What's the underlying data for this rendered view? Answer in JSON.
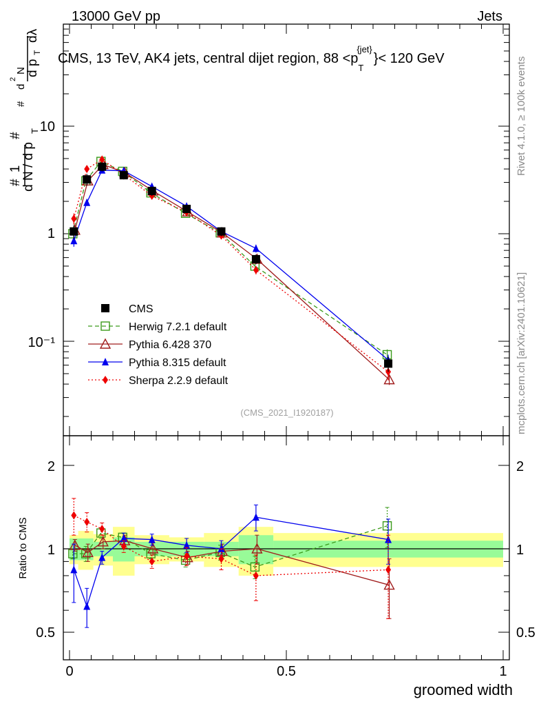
{
  "header": {
    "left": "13000 GeV pp",
    "right": "Jets",
    "title": "CMS, 13 TeV, AK4 jets, central dijet region, 88 <p",
    "title_sup": "{jet}",
    "title_sub": "T",
    "title_end": "}< 120 GeV",
    "watermark": "(CMS_2021_I1920187)",
    "side_top": "Rivet 4.1.0, ≥ 100k events",
    "side_bottom": "mcplots.cern.ch [arXiv:2401.10621]"
  },
  "axes": {
    "xlabel": "groomed width",
    "ratio_ylabel": "Ratio to CMS",
    "ylabel_main": "1/N dN/dp_T d²N/dp_T dλ",
    "main_ticks": [
      "10",
      "1",
      "10⁻¹"
    ],
    "ratio_ticks": [
      "2",
      "1",
      "0.5"
    ],
    "x_ticks": [
      "0",
      "0.5",
      "1"
    ]
  },
  "colors": {
    "cms": "#000000",
    "herwig": "#3a9a1a",
    "pythia6": "#a01c1c",
    "pythia8": "#0000ee",
    "sherpa": "#ee0000",
    "band_inner": "#98fb98",
    "band_outer": "#ffff90"
  },
  "chart_data": {
    "type": "line",
    "title": "CMS, 13 TeV, AK4 jets, central dijet region, 88 < pT{jet} < 120 GeV",
    "xlabel": "groomed width",
    "ylabel": "1/N dN/dpT d2N/dpT dlambda",
    "xlim": [
      0,
      1
    ],
    "ylim_main": [
      0.016,
      40
    ],
    "yscale_main": "log",
    "ylim_ratio": [
      0.4,
      2.4
    ],
    "yscale_ratio": "log",
    "legend_position": "middle-left",
    "x": [
      0.01,
      0.04,
      0.075,
      0.125,
      0.19,
      0.27,
      0.35,
      0.43,
      0.735
    ],
    "series": [
      {
        "name": "CMS",
        "key": "cms",
        "marker": "square-filled",
        "style": "none",
        "values": [
          1.05,
          3.2,
          4.2,
          3.5,
          2.5,
          1.7,
          1.05,
          0.58,
          0.062
        ],
        "errors": [
          0.15,
          0.4,
          0.4,
          0.3,
          0.25,
          0.15,
          0.1,
          0.06,
          0.01
        ],
        "ratio_band_inner": [
          0.09,
          0.09,
          0.06,
          0.1,
          0.06,
          0.06,
          0.06,
          0.12,
          0.07
        ],
        "ratio_band_outer": [
          0.12,
          0.16,
          0.13,
          0.2,
          0.12,
          0.1,
          0.14,
          0.2,
          0.14
        ]
      },
      {
        "name": "Herwig 7.2.1 default",
        "key": "herwig",
        "marker": "square-open",
        "style": "dashed",
        "values": [
          1.0,
          3.1,
          4.7,
          3.8,
          2.4,
          1.55,
          1.02,
          0.5,
          0.075
        ],
        "ratio": [
          0.96,
          0.96,
          1.14,
          1.1,
          0.96,
          0.91,
          0.97,
          0.86,
          1.21
        ],
        "ratio_err": [
          0.04,
          0.06,
          0.05,
          0.04,
          0.04,
          0.05,
          0.06,
          0.08,
          0.2
        ]
      },
      {
        "name": "Pythia 6.428 370",
        "key": "pythia6",
        "marker": "triangle-open",
        "style": "solid",
        "values": [
          1.08,
          3.1,
          4.4,
          3.7,
          2.5,
          1.6,
          1.02,
          0.58,
          0.044
        ],
        "ratio": [
          1.03,
          0.97,
          1.06,
          1.07,
          1.0,
          0.93,
          0.98,
          1.0,
          0.74
        ],
        "ratio_err": [
          0.05,
          0.07,
          0.06,
          0.05,
          0.05,
          0.05,
          0.06,
          0.12,
          0.18
        ]
      },
      {
        "name": "Pythia 8.315 default",
        "key": "pythia8",
        "marker": "triangle-filled",
        "style": "solid",
        "values": [
          0.86,
          1.95,
          3.9,
          3.85,
          2.75,
          1.8,
          1.05,
          0.73,
          0.067
        ],
        "ratio": [
          0.84,
          0.62,
          0.93,
          1.09,
          1.08,
          1.03,
          1.0,
          1.3,
          1.08
        ],
        "ratio_err": [
          0.2,
          0.1,
          0.05,
          0.05,
          0.05,
          0.06,
          0.07,
          0.14,
          0.2
        ]
      },
      {
        "name": "Sherpa 2.2.9 default",
        "key": "sherpa",
        "marker": "diamond-filled",
        "style": "dotted",
        "values": [
          1.38,
          4.0,
          4.9,
          3.55,
          2.25,
          1.58,
          0.96,
          0.46,
          0.052
        ],
        "ratio": [
          1.32,
          1.25,
          1.18,
          1.02,
          0.9,
          0.94,
          0.92,
          0.8,
          0.84
        ],
        "ratio_err": [
          0.2,
          0.1,
          0.06,
          0.05,
          0.05,
          0.07,
          0.08,
          0.15,
          0.28
        ]
      }
    ]
  }
}
